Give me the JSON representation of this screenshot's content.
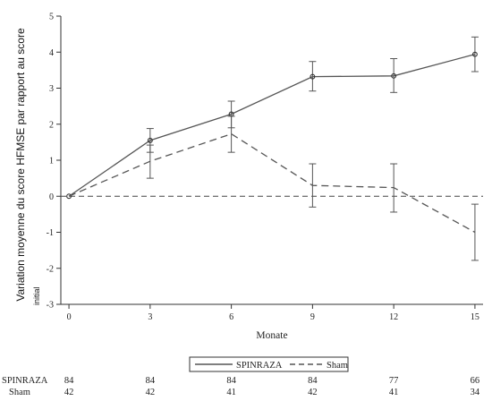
{
  "chart_data": {
    "type": "line",
    "title": "",
    "xlabel": "Monate",
    "ylabel_lines": [
      "Variation moyenne du score HFMSE par rapport au score",
      "initial"
    ],
    "x": [
      0,
      3,
      6,
      9,
      12,
      15
    ],
    "xlim": [
      -0.3,
      15.3
    ],
    "ylim": [
      -3,
      5
    ],
    "yticks": [
      -3,
      -2,
      -1,
      0,
      1,
      2,
      3,
      4,
      5
    ],
    "reference_line": 0,
    "grid": false,
    "legend_position": "bottom",
    "series": [
      {
        "name": "SPINRAZA",
        "style": "solid",
        "color": "#555555",
        "values": [
          0,
          1.55,
          2.28,
          3.32,
          3.34,
          3.94
        ],
        "lower": [
          null,
          1.22,
          1.9,
          2.92,
          2.88,
          3.46
        ],
        "upper": [
          null,
          1.88,
          2.64,
          3.74,
          3.82,
          4.42
        ]
      },
      {
        "name": "Sham",
        "style": "dashed",
        "color": "#555555",
        "values": [
          0,
          0.97,
          1.73,
          0.3,
          0.24,
          -1.0
        ],
        "lower": [
          null,
          0.5,
          1.22,
          -0.3,
          -0.44,
          -1.78
        ],
        "upper": [
          null,
          1.42,
          2.22,
          0.9,
          0.9,
          -0.22
        ]
      }
    ],
    "at_risk": {
      "rows": [
        {
          "label": "SPINRAZA",
          "values": [
            "84",
            "84",
            "84",
            "84",
            "77",
            "66"
          ]
        },
        {
          "label": "Sham",
          "values": [
            "42",
            "42",
            "41",
            "42",
            "41",
            "34"
          ]
        }
      ]
    }
  }
}
